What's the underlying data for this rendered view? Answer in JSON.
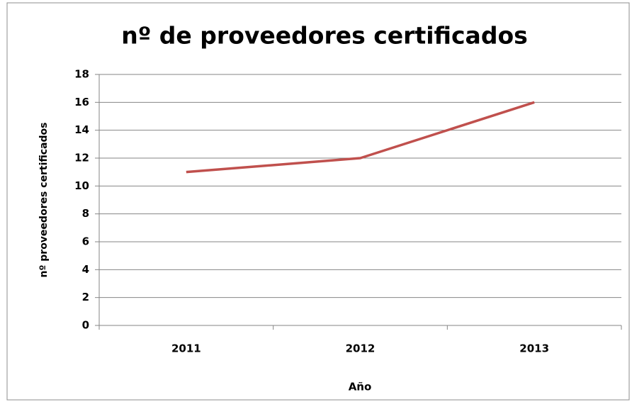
{
  "chart_data": {
    "type": "line",
    "title": "nº de proveedores certificados",
    "x_label": "Año",
    "y_label": "nº proveedores certificados",
    "categories": [
      "2011",
      "2012",
      "2013"
    ],
    "series": [
      {
        "name": "nº proveedores certificados",
        "color": "#c0504d",
        "values": [
          11,
          12,
          16
        ]
      }
    ],
    "ylim": [
      0,
      18
    ],
    "yticks": [
      0,
      2,
      4,
      6,
      8,
      10,
      12,
      14,
      16,
      18
    ],
    "grid": true
  }
}
